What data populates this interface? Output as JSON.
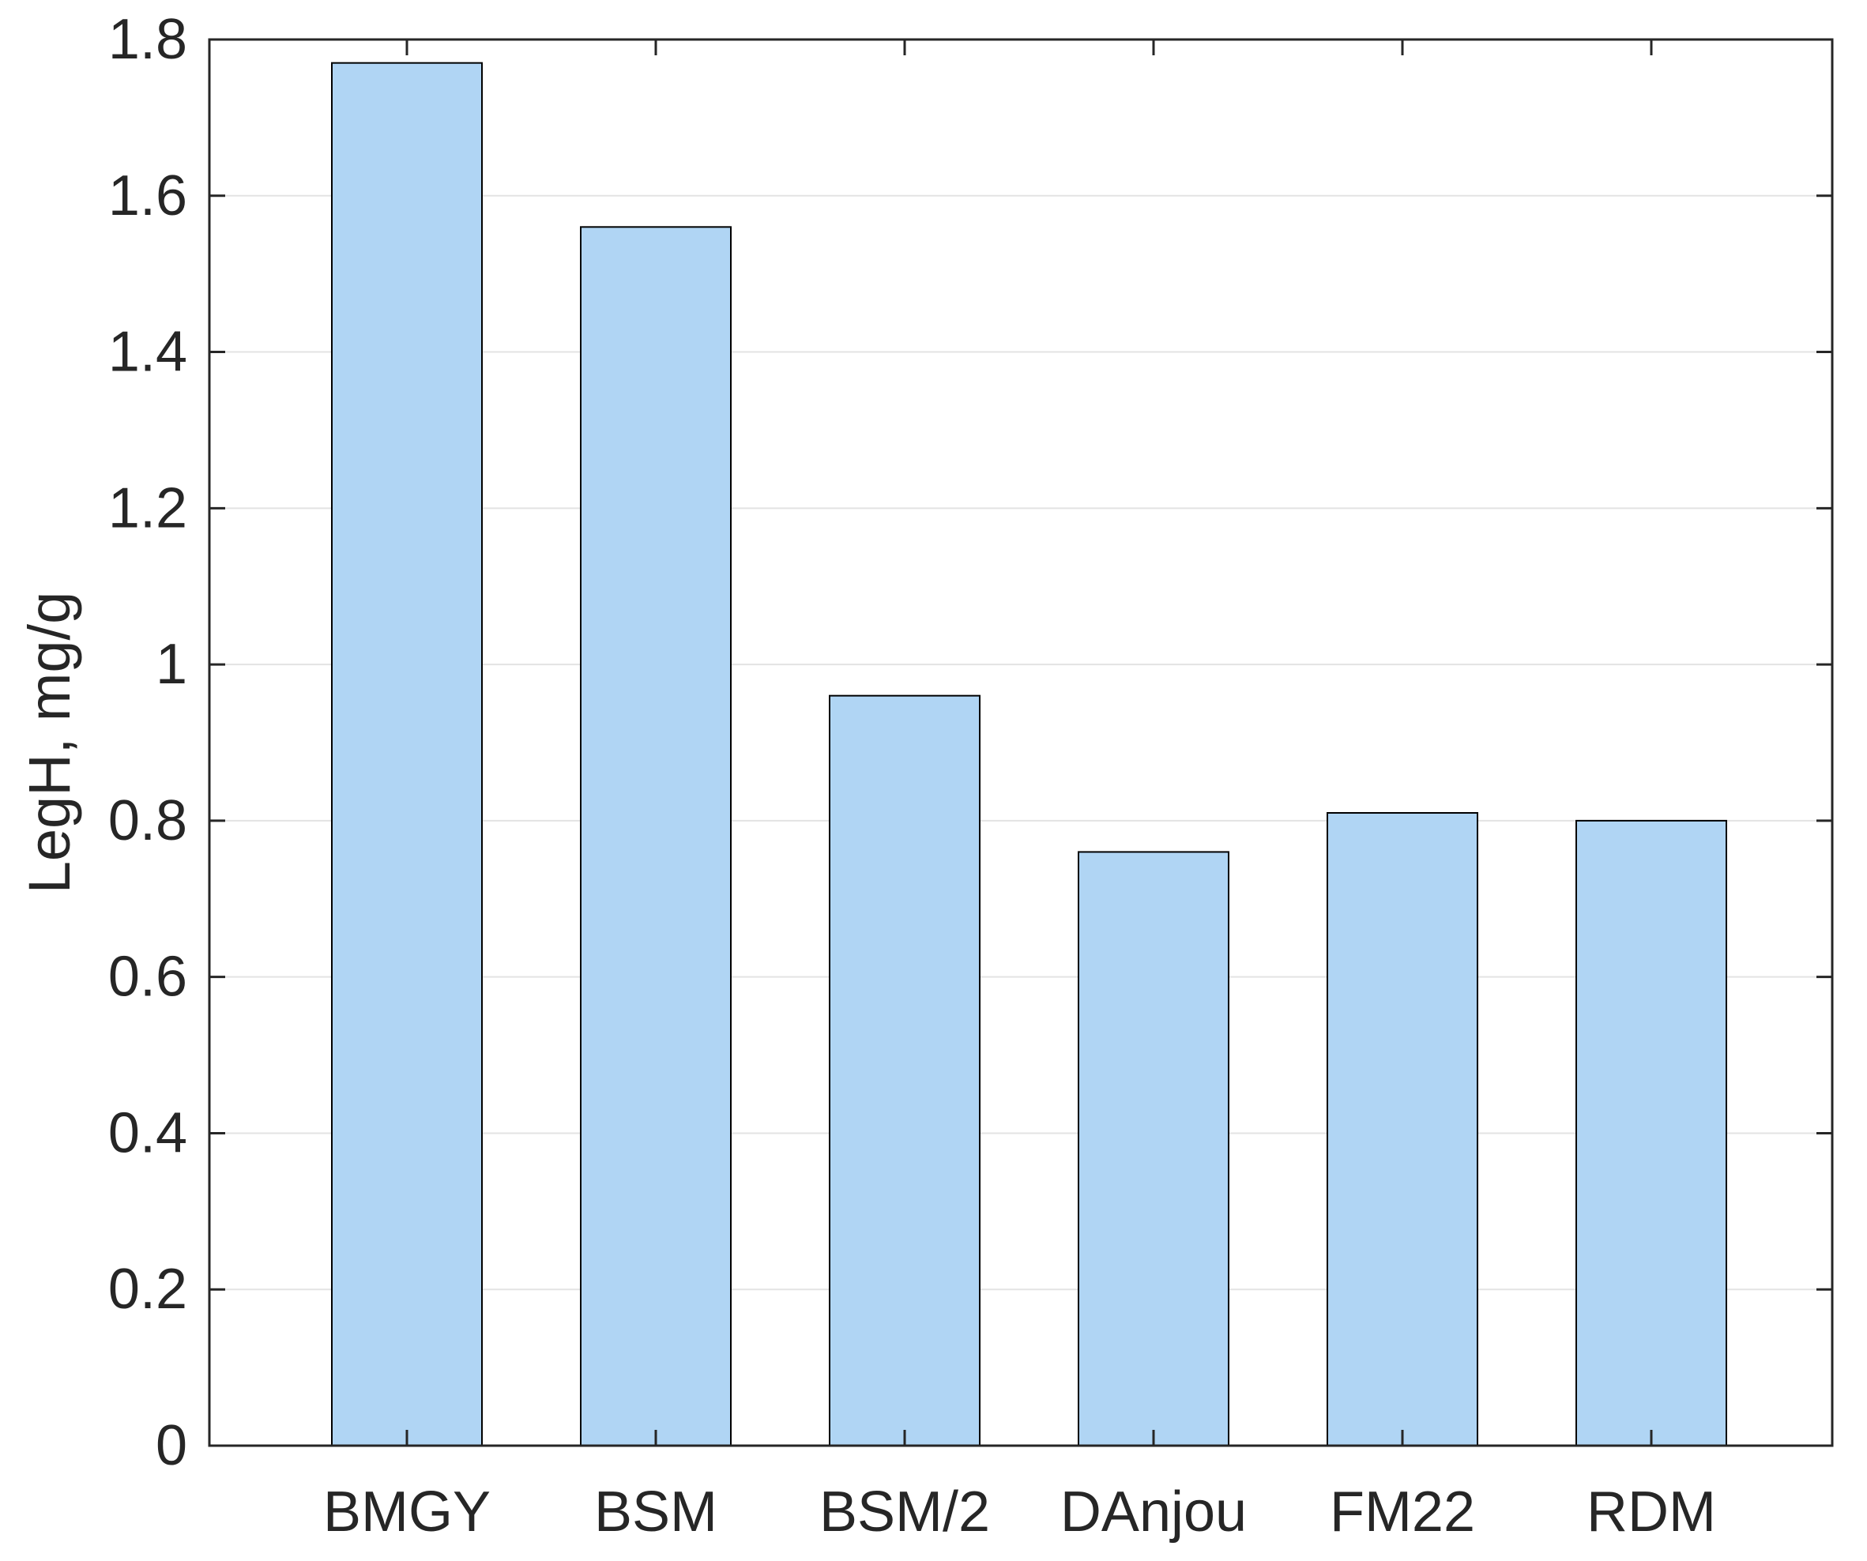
{
  "chart_data": {
    "type": "bar",
    "title": "",
    "xlabel": "",
    "ylabel": "LegH, mg/g",
    "categories": [
      "BMGY",
      "BSM",
      "BSM/2",
      "DAnjou",
      "FM22",
      "RDM"
    ],
    "values": [
      1.77,
      1.56,
      0.96,
      0.76,
      0.81,
      0.8
    ],
    "ylim": [
      0,
      1.8
    ],
    "yticks": [
      "0",
      "0.2",
      "0.4",
      "0.6",
      "0.8",
      "1",
      "1.2",
      "1.4",
      "1.6",
      "1.8"
    ],
    "grid": "horizontal",
    "legend": "none",
    "colors": {
      "bar_fill": "#b0d5f4",
      "bar_edge": "#000000",
      "grid": "#e3e3e3",
      "axis": "#262626"
    }
  }
}
